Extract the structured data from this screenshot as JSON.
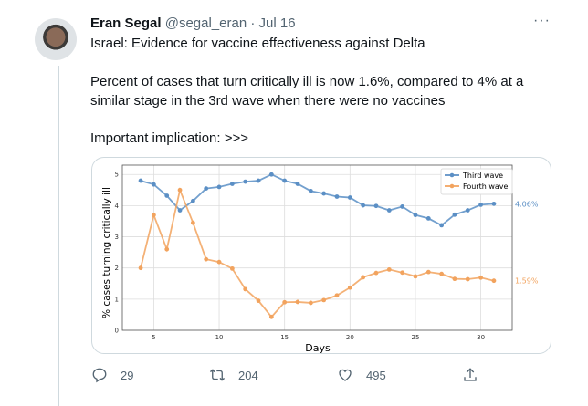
{
  "tweet": {
    "author_name": "Eran Segal",
    "handle": "@segal_eran",
    "separator": "·",
    "date": "Jul 16",
    "lines": [
      "Israel: Evidence for vaccine effectiveness against Delta",
      "Percent of cases that turn critically ill is now 1.6%, compared to 4% at a",
      "similar stage in the 3rd wave when there were no vaccines",
      "Important implication: >>>"
    ],
    "more_icon": "more-horizontal-icon",
    "actions": {
      "reply_count": "29",
      "retweet_count": "204",
      "like_count": "495"
    }
  },
  "chart_data": {
    "type": "line",
    "xlabel": "Days",
    "ylabel": "% cases turning critically ill",
    "xlim": [
      2.6,
      32.4
    ],
    "ylim": [
      0,
      5.3
    ],
    "xticks": [
      5,
      10,
      15,
      20,
      25,
      30
    ],
    "yticks": [
      0,
      1,
      2,
      3,
      4,
      5
    ],
    "grid": true,
    "legend_placement": "top-right",
    "x": [
      4,
      5,
      6,
      7,
      8,
      9,
      10,
      11,
      12,
      13,
      14,
      15,
      16,
      17,
      18,
      19,
      20,
      21,
      22,
      23,
      24,
      25,
      26,
      27,
      28,
      29,
      30,
      31
    ],
    "series": [
      {
        "name": "Third wave",
        "color": "#5b8fc5",
        "end_label": "4.06%",
        "values": [
          4.8,
          4.68,
          4.32,
          3.85,
          4.15,
          4.55,
          4.6,
          4.7,
          4.77,
          4.8,
          5.0,
          4.8,
          4.7,
          4.47,
          4.39,
          4.29,
          4.26,
          4.01,
          3.99,
          3.85,
          3.97,
          3.7,
          3.59,
          3.37,
          3.71,
          3.85,
          4.03,
          4.06
        ]
      },
      {
        "name": "Fourth wave",
        "color": "#f2a35e",
        "end_label": "1.59%",
        "values": [
          2.0,
          3.7,
          2.6,
          4.5,
          3.45,
          2.28,
          2.19,
          1.98,
          1.32,
          0.95,
          0.43,
          0.9,
          0.91,
          0.88,
          0.97,
          1.12,
          1.37,
          1.7,
          1.84,
          1.95,
          1.85,
          1.73,
          1.87,
          1.81,
          1.65,
          1.64,
          1.69,
          1.59
        ]
      }
    ]
  }
}
